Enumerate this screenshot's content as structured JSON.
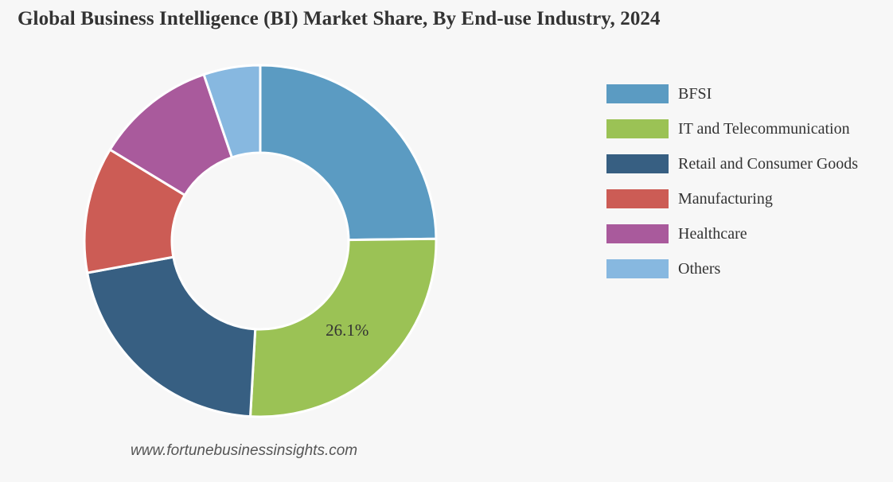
{
  "title": "Global Business Intelligence (BI) Market Share, By End-use Industry, 2024",
  "source": "www.fortunebusinessinsights.com",
  "chart_data": {
    "type": "pie",
    "donut": true,
    "title": "Global Business Intelligence (BI) Market Share, By End-use Industry, 2024",
    "legend_position": "right",
    "unit": "%",
    "series": [
      {
        "name": "BFSI",
        "value": 24.8,
        "color": "#5b9bc2",
        "label": ""
      },
      {
        "name": "IT and Telecommunication",
        "value": 26.1,
        "color": "#9bc255",
        "label": "26.1%"
      },
      {
        "name": "Retail and Consumer Goods",
        "value": 21.2,
        "color": "#375f82",
        "label": ""
      },
      {
        "name": "Manufacturing",
        "value": 11.6,
        "color": "#cc5c55",
        "label": ""
      },
      {
        "name": "Healthcare",
        "value": 11.1,
        "color": "#a95a9c",
        "label": ""
      },
      {
        "name": "Others",
        "value": 5.2,
        "color": "#87b8e0",
        "label": ""
      }
    ]
  }
}
